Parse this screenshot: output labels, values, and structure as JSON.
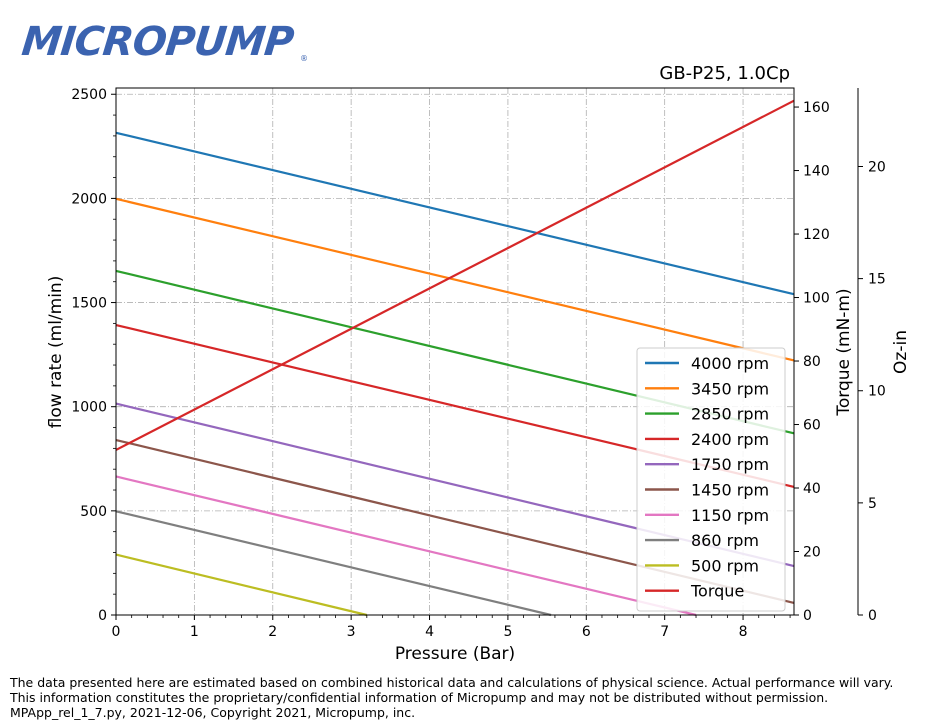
{
  "logo": {
    "text": "MICROPUMP",
    "registered": "®"
  },
  "colors": {
    "logo": "#3b63b0"
  },
  "chart_data": {
    "type": "line",
    "title": "GB-P25,  1.0Cp",
    "xlabel": "Pressure (Bar)",
    "ylabel": "flow rate (ml/min)",
    "y2label": "Torque (mN-m)",
    "y3label": "Oz-in",
    "xlim": [
      0,
      8.65
    ],
    "ylim": [
      0,
      2530
    ],
    "y2lim": [
      0,
      166
    ],
    "y3lim": [
      0,
      23.5
    ],
    "xticks": [
      0,
      1,
      2,
      3,
      4,
      5,
      6,
      7,
      8
    ],
    "yticks": [
      0,
      500,
      1000,
      1500,
      2000,
      2500
    ],
    "y2ticks": [
      0,
      20,
      40,
      60,
      80,
      100,
      120,
      140,
      160
    ],
    "y3ticks": [
      0,
      5,
      10,
      15,
      20
    ],
    "grid": true,
    "legend": "right",
    "series": [
      {
        "name": "4000 rpm",
        "color": "#1f77b4",
        "x": [
          0,
          8.65
        ],
        "y": [
          2315,
          1540
        ]
      },
      {
        "name": "3450 rpm",
        "color": "#ff7f0e",
        "x": [
          0,
          8.65
        ],
        "y": [
          1998,
          1222
        ]
      },
      {
        "name": "2850 rpm",
        "color": "#2ca02c",
        "x": [
          0,
          8.65
        ],
        "y": [
          1652,
          872
        ]
      },
      {
        "name": "2400 rpm",
        "color": "#d62728",
        "x": [
          0,
          8.65
        ],
        "y": [
          1392,
          615
        ]
      },
      {
        "name": "1750 rpm",
        "color": "#9467bd",
        "x": [
          0,
          8.65
        ],
        "y": [
          1015,
          235
        ]
      },
      {
        "name": "1450 rpm",
        "color": "#8c564b",
        "x": [
          0,
          8.65
        ],
        "y": [
          840,
          58
        ]
      },
      {
        "name": "1150 rpm",
        "color": "#e377c2",
        "x": [
          0,
          7.4
        ],
        "y": [
          665,
          0
        ]
      },
      {
        "name": "860 rpm",
        "color": "#7f7f7f",
        "x": [
          0,
          5.55
        ],
        "y": [
          498,
          0
        ]
      },
      {
        "name": "500 rpm",
        "color": "#bcbd22",
        "x": [
          0,
          3.2
        ],
        "y": [
          290,
          0
        ]
      },
      {
        "name": "Torque",
        "color": "#d62728",
        "axis": "y2",
        "x": [
          0,
          8.65
        ],
        "y": [
          52,
          162
        ]
      }
    ]
  },
  "footer": {
    "line1": "The data presented here are estimated based on combined historical data and calculations of physical science.  Actual performance will vary.",
    "line2": "This information constitutes the proprietary/confidential information of Micropump and may not be distributed without permission.",
    "line3": "MPApp_rel_1_7.py, 2021-12-06, Copyright 2021, Micropump, inc."
  }
}
